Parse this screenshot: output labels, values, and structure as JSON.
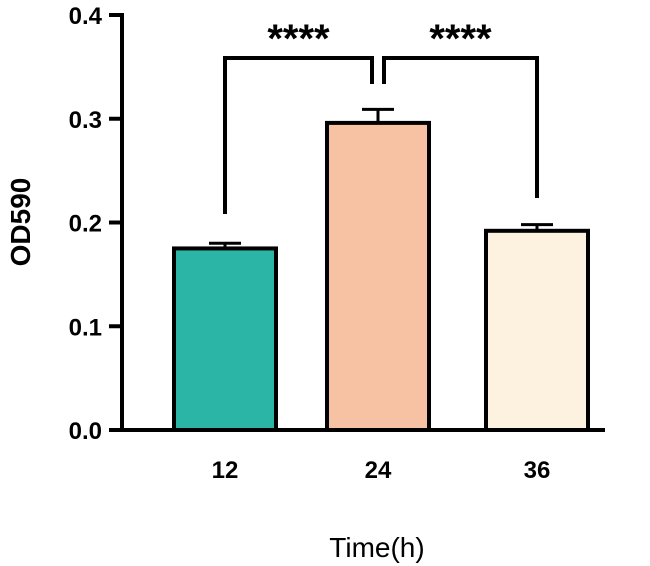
{
  "chart_data": {
    "type": "bar",
    "categories": [
      "12",
      "24",
      "36"
    ],
    "values": [
      0.175,
      0.296,
      0.192
    ],
    "errors": [
      0.005,
      0.013,
      0.006
    ],
    "colors": [
      "#2ab5a7",
      "#f7c2a4",
      "#fdf1df"
    ],
    "title": "",
    "xlabel": "Time(h)",
    "ylabel": "OD590",
    "ylim": [
      0,
      0.4
    ],
    "yticks": [
      0.0,
      0.1,
      0.2,
      0.3,
      0.4
    ],
    "ytick_labels": [
      "0.0",
      "0.1",
      "0.2",
      "0.3",
      "0.4"
    ],
    "grid": false,
    "significance": [
      {
        "between": [
          "12",
          "24"
        ],
        "label": "****"
      },
      {
        "between": [
          "24",
          "36"
        ],
        "label": "****"
      }
    ]
  }
}
